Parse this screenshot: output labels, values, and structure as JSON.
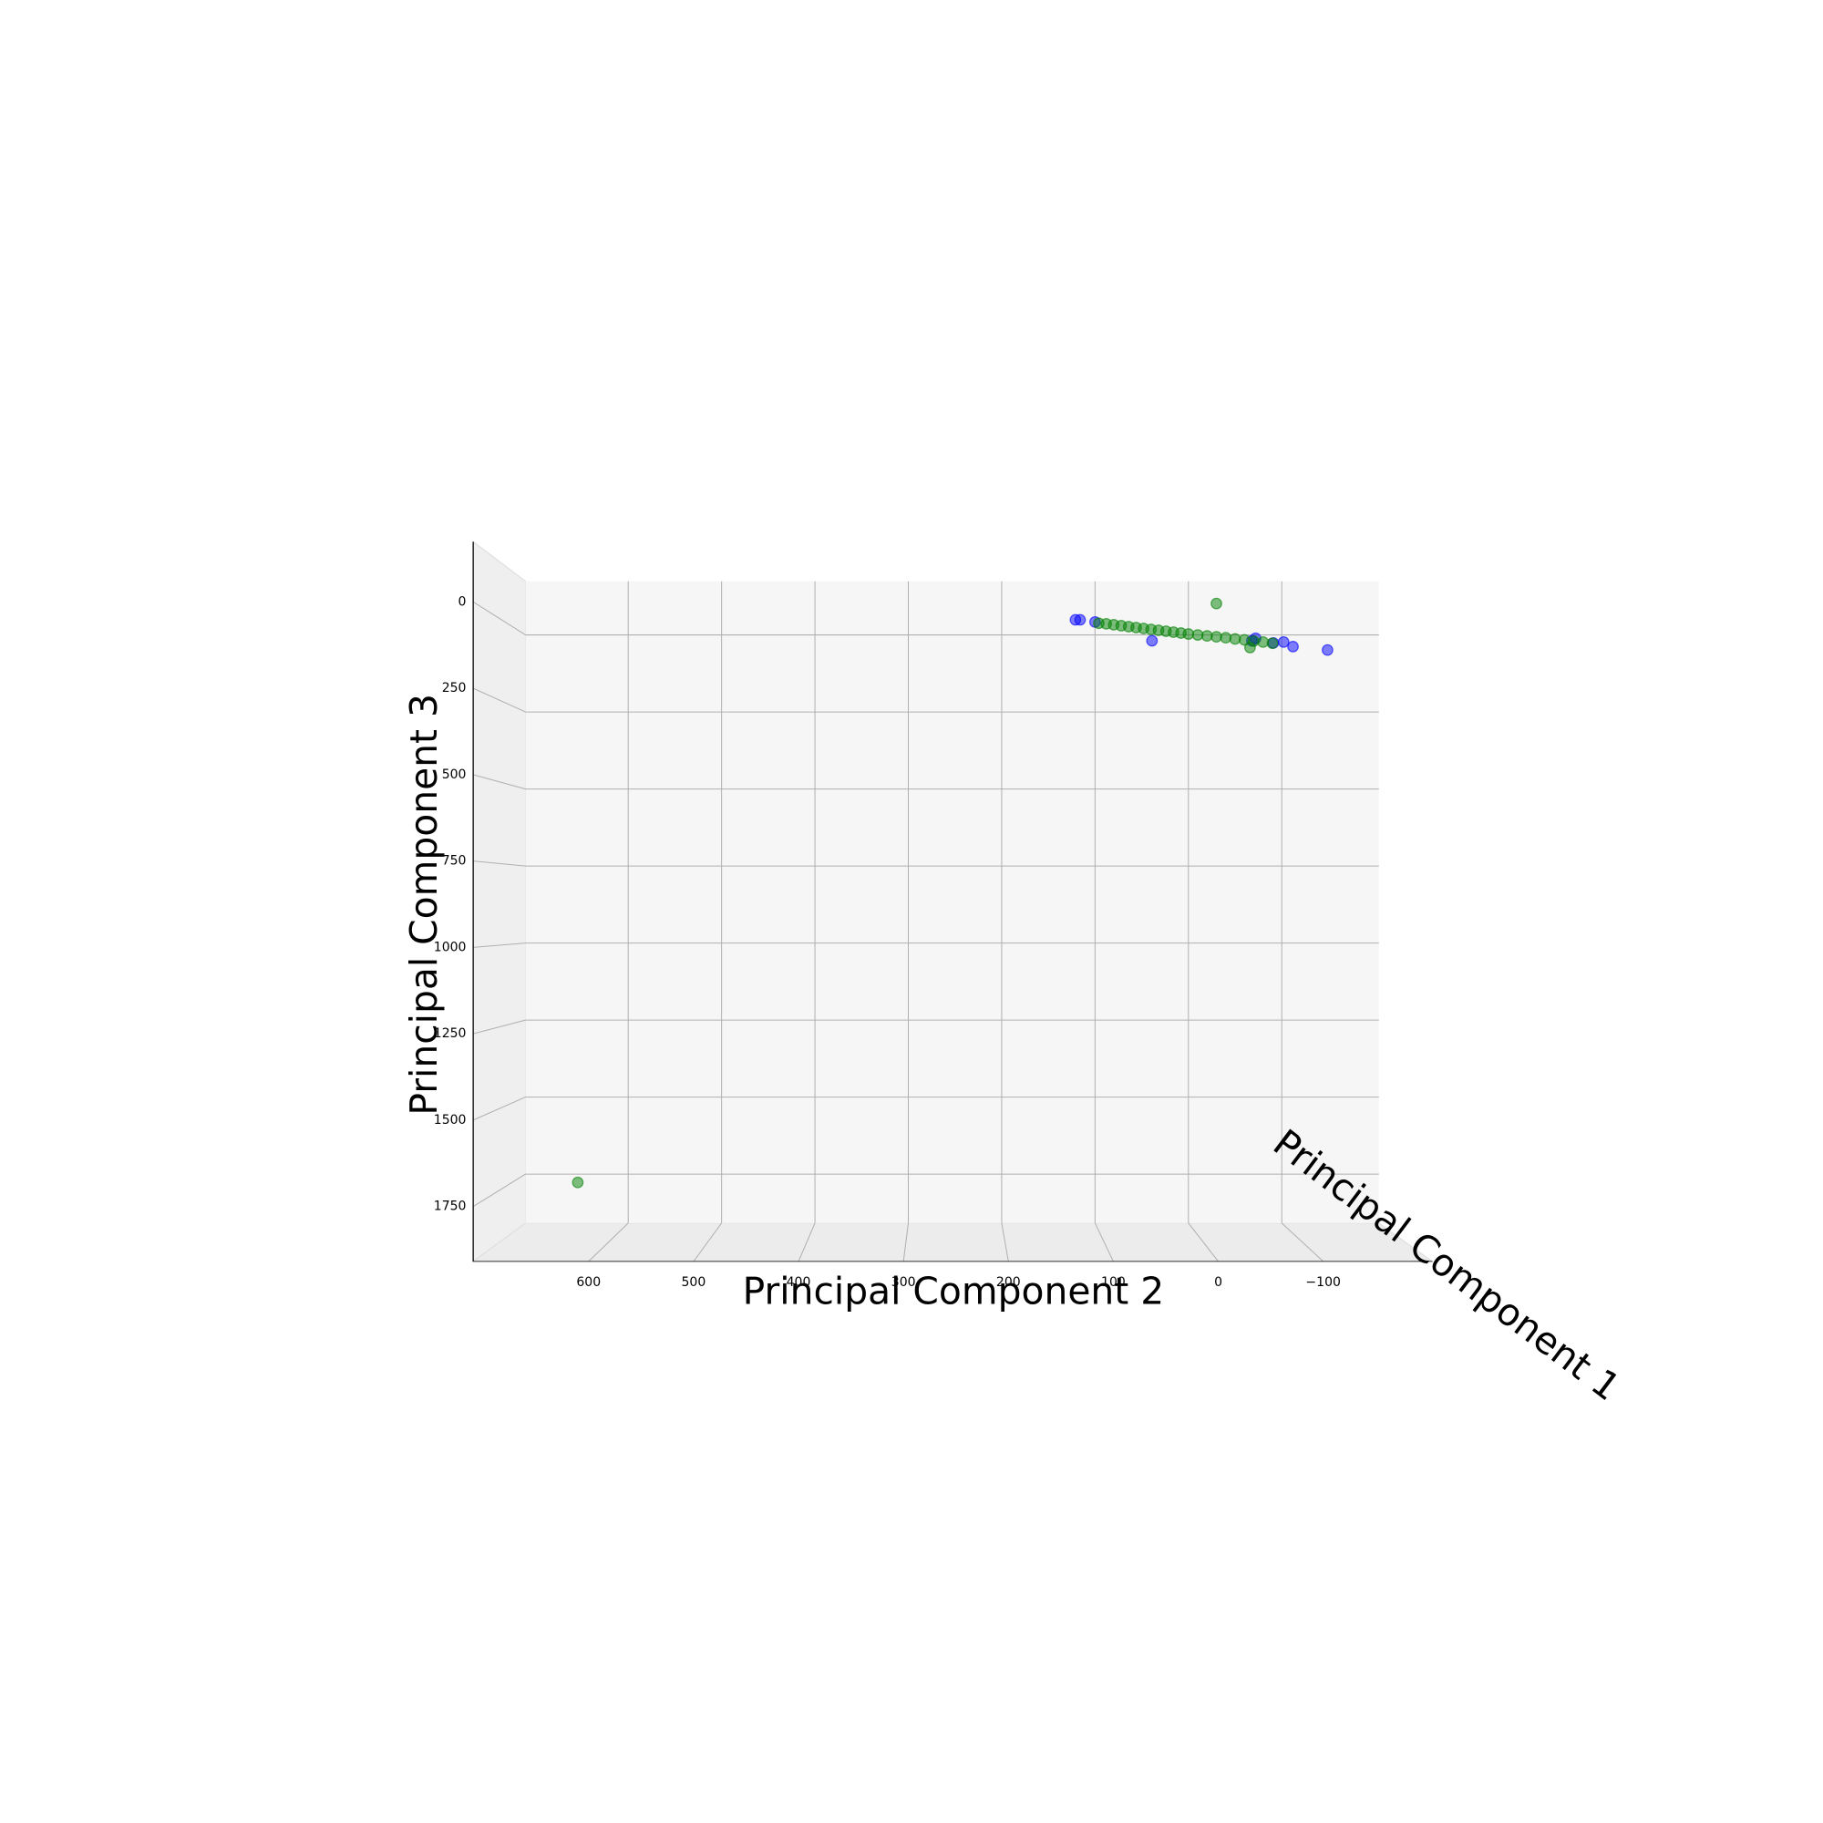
{
  "chart_data": {
    "type": "scatter3d",
    "xlabel": "Principal Component 2",
    "ylabel": "Principal Component 3",
    "zlabel": "Principal Component 1",
    "xlim": [
      710,
      -204
    ],
    "ylim": [
      -174,
      1909
    ],
    "xticks": [
      600,
      500,
      400,
      300,
      200,
      100,
      0,
      {
        "value": -100,
        "label": "−100"
      }
    ],
    "yticks": [
      0,
      250,
      500,
      750,
      1000,
      1250,
      1500,
      1750
    ],
    "grid": true,
    "series": [
      {
        "color": "#0000ff",
        "x": [
          121,
          116,
          100,
          39,
          -68,
          -72,
          -91,
          -102,
          -112,
          -149
        ],
        "values": [
          -49,
          -49,
          -42,
          19,
          19,
          11,
          26,
          23,
          38,
          49
        ]
      },
      {
        "color": "#008000",
        "x": [
          654,
          -30,
          96,
          88,
          80,
          72,
          64,
          56,
          48,
          40,
          32,
          24,
          16,
          8,
          0,
          -10,
          -20,
          -30,
          -40,
          -50,
          -60,
          -70,
          -80,
          -90,
          -66
        ],
        "values": [
          1777,
          -102,
          -38,
          -36,
          -33,
          -30,
          -27,
          -24,
          -21,
          -18,
          -15,
          -12,
          -9,
          -6,
          -3,
          0,
          3,
          6,
          9,
          13,
          16,
          20,
          23,
          27,
          41
        ]
      }
    ]
  }
}
